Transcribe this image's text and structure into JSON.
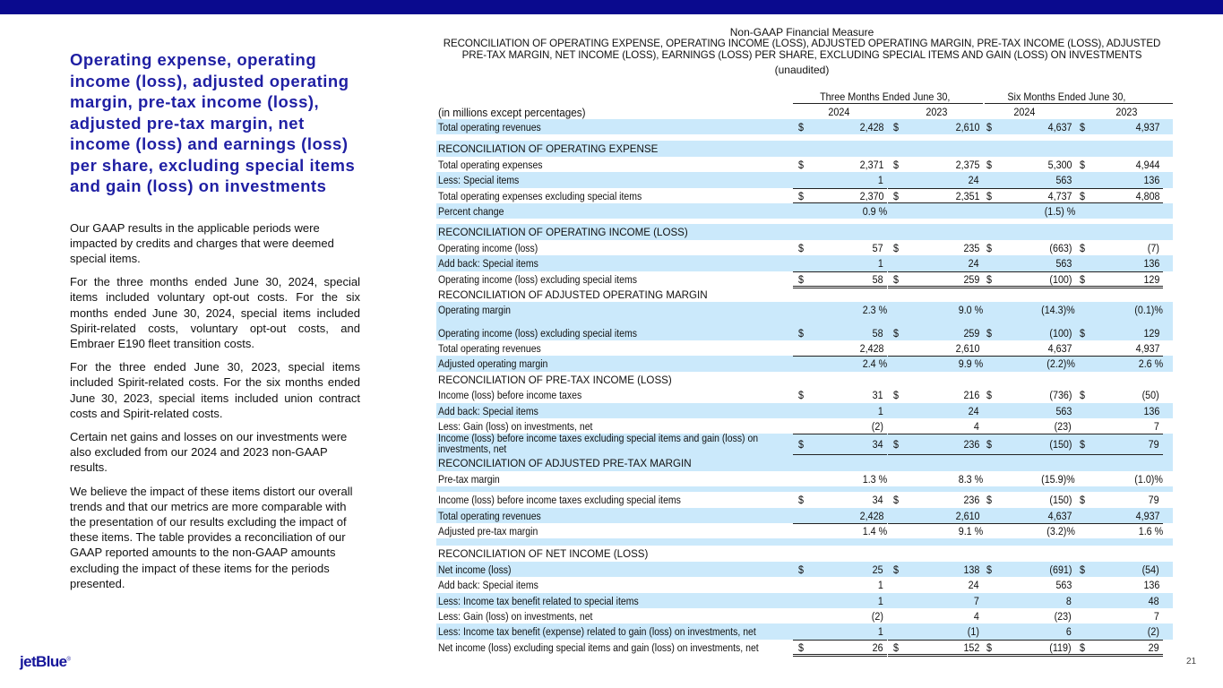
{
  "colors": {
    "top_bar": "#0a0a8e",
    "heading": "#1f1fa3",
    "row_shade": "#cbe9fb"
  },
  "left": {
    "heading": "Operating expense, operating income (loss), adjusted operating margin, pre-tax income (loss), adjusted pre-tax margin, net income (loss) and earnings (loss) per share, excluding special items and gain (loss) on investments",
    "paragraphs": [
      "Our GAAP results in the applicable periods were impacted by credits and charges that were deemed special items.",
      "For the three months ended June 30, 2024, special items included voluntary opt-out costs. For the six months ended June 30, 2024, special items included Spirit-related costs, voluntary opt-out costs, and Embraer E190 fleet transition costs.",
      "For the three ended June 30, 2023, special items included Spirit-related costs. For the six months ended June 30, 2023, special items included union contract costs and Spirit-related costs.",
      "Certain net gains and losses on our investments were also excluded from our 2024 and 2023 non-GAAP results.",
      "We believe the impact of these items distort our overall trends and that our metrics are more comparable with the presentation of our results excluding the impact of these items. The table provides a reconciliation of our GAAP reported amounts to the non-GAAP amounts excluding the impact of these items for the periods presented."
    ]
  },
  "logo": "jetBlue",
  "page_number": "21",
  "table": {
    "supertitle": "Non-GAAP Financial Measure",
    "title": "RECONCILIATION OF OPERATING EXPENSE, OPERATING INCOME (LOSS), ADJUSTED OPERATING MARGIN, PRE-TAX INCOME (LOSS), ADJUSTED PRE-TAX MARGIN, NET INCOME (LOSS), EARNINGS (LOSS) PER SHARE, EXCLUDING SPECIAL ITEMS AND GAIN (LOSS) ON INVESTMENTS",
    "subtitle": "(unaudited)",
    "units": "(in millions except percentages)",
    "period_groups": [
      "Three Months Ended June 30,",
      "Six Months Ended June 30,"
    ],
    "years": [
      "2024",
      "2023",
      "2024",
      "2023"
    ],
    "rows": [
      {
        "label": "Total operating revenues",
        "cells": [
          [
            "$",
            "2,428"
          ],
          [
            "$",
            "2,610"
          ],
          [
            "$",
            "4,637"
          ],
          [
            "$",
            "4,937"
          ]
        ]
      },
      {
        "spacer": true
      },
      {
        "header": true,
        "label": "RECONCILIATION OF OPERATING EXPENSE"
      },
      {
        "label": "Total operating expenses",
        "cells": [
          [
            "$",
            "2,371"
          ],
          [
            "$",
            "2,375"
          ],
          [
            "$",
            "5,300"
          ],
          [
            "$",
            "4,944"
          ]
        ]
      },
      {
        "label": "Less: Special items",
        "cells": [
          [
            "",
            "1"
          ],
          [
            "",
            "24"
          ],
          [
            "",
            "563"
          ],
          [
            "",
            "136"
          ]
        ]
      },
      {
        "label": "Total operating expenses excluding special items",
        "cells": [
          [
            "$",
            "2,370"
          ],
          [
            "$",
            "2,351"
          ],
          [
            "$",
            "4,737"
          ],
          [
            "$",
            "4,808"
          ]
        ]
      },
      {
        "label": "Percent change",
        "cells": [
          [
            "",
            "0.9 %"
          ],
          [
            "",
            ""
          ],
          [
            "",
            "(1.5) %"
          ],
          [
            "",
            ""
          ]
        ]
      },
      {
        "spacer": true
      },
      {
        "header": true,
        "label": "RECONCILIATION OF OPERATING INCOME (LOSS)"
      },
      {
        "label": "Operating income (loss)",
        "cells": [
          [
            "$",
            "57"
          ],
          [
            "$",
            "235"
          ],
          [
            "$",
            "(663)"
          ],
          [
            "$",
            "(7)"
          ]
        ]
      },
      {
        "label": "Add back: Special items",
        "cells": [
          [
            "",
            "1"
          ],
          [
            "",
            "24"
          ],
          [
            "",
            "563"
          ],
          [
            "",
            "136"
          ]
        ]
      },
      {
        "label": "Operating income (loss) excluding special items",
        "cells": [
          [
            "$",
            "58"
          ],
          [
            "$",
            "259"
          ],
          [
            "$",
            "(100)"
          ],
          [
            "$",
            "129"
          ]
        ]
      },
      {
        "header": true,
        "label": "RECONCILIATION OF ADJUSTED OPERATING MARGIN"
      },
      {
        "label": "Operating margin",
        "cells": [
          [
            "",
            "2.3 %"
          ],
          [
            "",
            "9.0 %"
          ],
          [
            "",
            "(14.3)%"
          ],
          [
            "",
            "(0.1)%"
          ]
        ]
      },
      {
        "spacer": true
      },
      {
        "label": "Operating income (loss) excluding special items",
        "cells": [
          [
            "$",
            "58"
          ],
          [
            "$",
            "259"
          ],
          [
            "$",
            "(100)"
          ],
          [
            "$",
            "129"
          ]
        ]
      },
      {
        "label": "Total operating revenues",
        "cells": [
          [
            "",
            "2,428"
          ],
          [
            "",
            "2,610"
          ],
          [
            "",
            "4,637"
          ],
          [
            "",
            "4,937"
          ]
        ]
      },
      {
        "label": "Adjusted operating margin",
        "cells": [
          [
            "",
            "2.4 %"
          ],
          [
            "",
            "9.9 %"
          ],
          [
            "",
            "(2.2)%"
          ],
          [
            "",
            "2.6 %"
          ]
        ]
      },
      {
        "header": true,
        "label": "RECONCILIATION OF PRE-TAX INCOME (LOSS)"
      },
      {
        "label": "Income (loss) before income taxes",
        "cells": [
          [
            "$",
            "31"
          ],
          [
            "$",
            "216"
          ],
          [
            "$",
            "(736)"
          ],
          [
            "$",
            "(50)"
          ]
        ]
      },
      {
        "label": "Add back: Special items",
        "cells": [
          [
            "",
            "1"
          ],
          [
            "",
            "24"
          ],
          [
            "",
            "563"
          ],
          [
            "",
            "136"
          ]
        ]
      },
      {
        "label": "Less: Gain (loss) on investments, net",
        "cells": [
          [
            "",
            "(2)"
          ],
          [
            "",
            "4"
          ],
          [
            "",
            "(23)"
          ],
          [
            "",
            "7"
          ]
        ]
      },
      {
        "label": "Income (loss) before income taxes excluding special items and gain (loss) on investments, net",
        "cells": [
          [
            "$",
            "34"
          ],
          [
            "$",
            "236"
          ],
          [
            "$",
            "(150)"
          ],
          [
            "$",
            "79"
          ]
        ]
      },
      {
        "header": true,
        "label": "RECONCILIATION OF ADJUSTED PRE-TAX MARGIN"
      },
      {
        "label": "Pre-tax margin",
        "cells": [
          [
            "",
            "1.3 %"
          ],
          [
            "",
            "8.3 %"
          ],
          [
            "",
            "(15.9)%"
          ],
          [
            "",
            "(1.0)%"
          ]
        ]
      },
      {
        "spacer": true
      },
      {
        "label": "Income (loss) before income taxes excluding special items",
        "cells": [
          [
            "$",
            "34"
          ],
          [
            "$",
            "236"
          ],
          [
            "$",
            "(150)"
          ],
          [
            "$",
            "79"
          ]
        ]
      },
      {
        "label": "Total operating revenues",
        "cells": [
          [
            "",
            "2,428"
          ],
          [
            "",
            "2,610"
          ],
          [
            "",
            "4,637"
          ],
          [
            "",
            "4,937"
          ]
        ]
      },
      {
        "label": "Adjusted pre-tax margin",
        "cells": [
          [
            "",
            "1.4 %"
          ],
          [
            "",
            "9.1 %"
          ],
          [
            "",
            "(3.2)%"
          ],
          [
            "",
            "1.6 %"
          ]
        ]
      },
      {
        "spacer": true
      },
      {
        "header": true,
        "label": "RECONCILIATION OF NET INCOME (LOSS)"
      },
      {
        "label": "Net income (loss)",
        "cells": [
          [
            "$",
            "25"
          ],
          [
            "$",
            "138"
          ],
          [
            "$",
            "(691)"
          ],
          [
            "$",
            "(54)"
          ]
        ]
      },
      {
        "label": "Add back: Special items",
        "cells": [
          [
            "",
            "1"
          ],
          [
            "",
            "24"
          ],
          [
            "",
            "563"
          ],
          [
            "",
            "136"
          ]
        ]
      },
      {
        "label": "Less: Income tax benefit related to special items",
        "cells": [
          [
            "",
            "1"
          ],
          [
            "",
            "7"
          ],
          [
            "",
            "8"
          ],
          [
            "",
            "48"
          ]
        ]
      },
      {
        "label": "Less: Gain (loss) on investments, net",
        "cells": [
          [
            "",
            "(2)"
          ],
          [
            "",
            "4"
          ],
          [
            "",
            "(23)"
          ],
          [
            "",
            "7"
          ]
        ]
      },
      {
        "label": "Less: Income tax benefit (expense) related to gain (loss) on investments, net",
        "cells": [
          [
            "",
            "1"
          ],
          [
            "",
            "(1)"
          ],
          [
            "",
            "6"
          ],
          [
            "",
            "(2)"
          ]
        ]
      },
      {
        "label": "Net income (loss) excluding special items and gain (loss) on investments, net",
        "cells": [
          [
            "$",
            "26"
          ],
          [
            "$",
            "152"
          ],
          [
            "$",
            "(119)"
          ],
          [
            "$",
            "29"
          ]
        ]
      }
    ]
  }
}
